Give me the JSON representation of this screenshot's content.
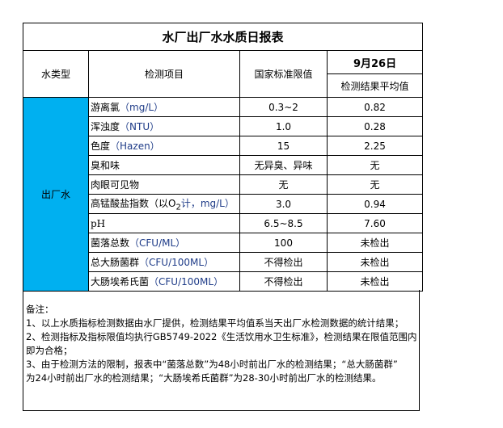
{
  "title": "水厂出厂水水质日报表",
  "headers": {
    "type": "水类型",
    "item": "检测项目",
    "standard": "国家标准限值",
    "date": "9月26日",
    "result": "检测结果平均值"
  },
  "type_label": "出厂水",
  "type_color": "#00B0F0",
  "rows": [
    {
      "name": "游离氯",
      "unit": "（mg/L）",
      "standard": "0.3~2",
      "result": "0.82"
    },
    {
      "name": "浑浊度",
      "unit": "（NTU）",
      "standard": "1.0",
      "result": "0.28"
    },
    {
      "name": "色度",
      "unit": "（Hazen）",
      "standard": "15",
      "result": "2.25"
    },
    {
      "name": "臭和味",
      "unit": "",
      "standard": "无异臭、异味",
      "result": "无"
    },
    {
      "name": "肉眼可见物",
      "unit": "",
      "standard": "无",
      "result": "无"
    },
    {
      "name": "高锰酸盐指数（以O",
      "sub": "2",
      "unit": "计，mg/L）",
      "standard": "3.0",
      "result": "0.94"
    },
    {
      "name": "pH",
      "unit": "",
      "standard": "6.5~8.5",
      "result": "7.60"
    },
    {
      "name": "菌落总数",
      "unit": "（CFU/ML）",
      "standard": "100",
      "result": "未检出"
    },
    {
      "name": "总大肠菌群",
      "unit": "（CFU/100ML）",
      "standard": "不得检出",
      "result": "未检出"
    },
    {
      "name": "大肠埃希氏菌",
      "unit": "（CFU/100ML）",
      "standard": "不得检出",
      "result": "未检出"
    }
  ],
  "notes": {
    "heading": "备注：",
    "lines": [
      "1、以上水质指标检测数据由水厂提供，检测结果平均值系当天出厂水检测数据的统计结果；",
      "2、检测指标及指标限值均执行GB5749-2022《生活饮用水卫生标准》，检测结果在限值范围内",
      "即为合格；",
      "3、由于检测方法的限制，报表中“菌落总数”为48小时前出厂水的检测结果；“总大肠菌群”",
      "为24小时前出厂水的检测结果；“大肠埃希氏菌群”为28-30小时前出厂水的检测结果。"
    ]
  }
}
